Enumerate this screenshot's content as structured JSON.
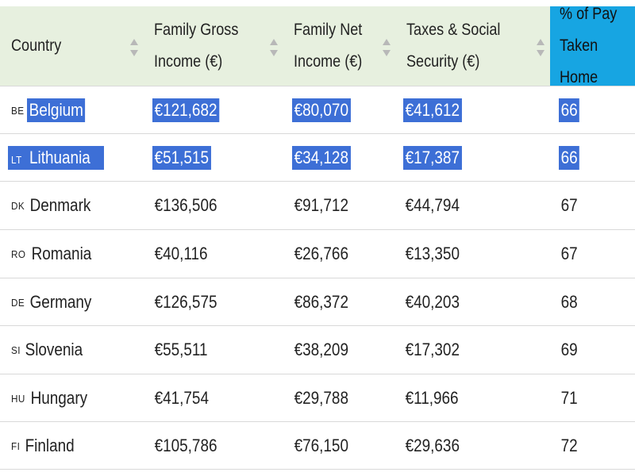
{
  "headers": [
    {
      "line1": "Country",
      "line2": ""
    },
    {
      "line1": "Family Gross",
      "line2": "Income (€)"
    },
    {
      "line1": "Family Net",
      "line2": "Income (€)"
    },
    {
      "line1": "Taxes & Social",
      "line2": "Security (€)"
    },
    {
      "line1": "% of Pay",
      "line2": "Taken Home"
    }
  ],
  "rows": [
    {
      "code": "BE",
      "country": "Belgium",
      "gross": "€121,682",
      "net": "€80,070",
      "taxes": "€41,612",
      "pct": "66",
      "selected": true
    },
    {
      "code": "LT",
      "country": "Lithuania",
      "gross": "€51,515",
      "net": "€34,128",
      "taxes": "€17,387",
      "pct": "66",
      "selected": true
    },
    {
      "code": "DK",
      "country": "Denmark",
      "gross": "€136,506",
      "net": "€91,712",
      "taxes": "€44,794",
      "pct": "67",
      "selected": false
    },
    {
      "code": "RO",
      "country": "Romania",
      "gross": "€40,116",
      "net": "€26,766",
      "taxes": "€13,350",
      "pct": "67",
      "selected": false
    },
    {
      "code": "DE",
      "country": "Germany",
      "gross": "€126,575",
      "net": "€86,372",
      "taxes": "€40,203",
      "pct": "68",
      "selected": false
    },
    {
      "code": "SI",
      "country": "Slovenia",
      "gross": "€55,511",
      "net": "€38,209",
      "taxes": "€17,302",
      "pct": "69",
      "selected": false
    },
    {
      "code": "HU",
      "country": "Hungary",
      "gross": "€41,754",
      "net": "€29,788",
      "taxes": "€11,966",
      "pct": "71",
      "selected": false
    },
    {
      "code": "FI",
      "country": "Finland",
      "gross": "€105,786",
      "net": "€76,150",
      "taxes": "€29,636",
      "pct": "72",
      "selected": false
    }
  ],
  "colors": {
    "header_bg": "#e7f0df",
    "active_header_bg": "#17a5e2",
    "selection": "#3d6fd6",
    "row_border": "#d9d9d9"
  },
  "icons": [
    "sort-arrows-icon"
  ]
}
